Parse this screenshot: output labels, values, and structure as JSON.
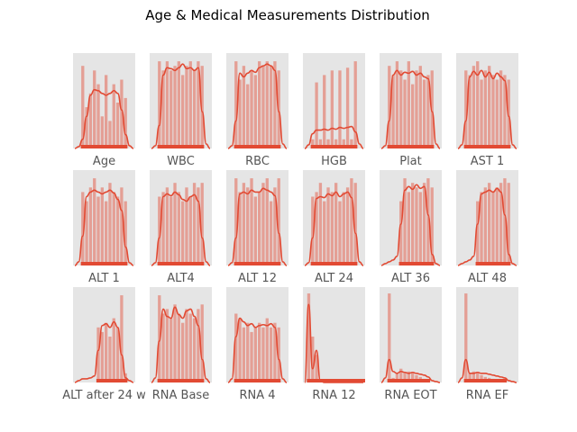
{
  "figure": {
    "title": "Age & Medical Measurements Distribution"
  },
  "colors": {
    "panel": "#e5e5e5",
    "bar": "#e24a33",
    "bar_alpha": 0.45,
    "kde": "#e24a33",
    "rug": "#e24a33"
  },
  "chart_data": [
    {
      "type": "area",
      "subplot": "histogram+kde",
      "xlabel": "Age",
      "kde": [
        0,
        0.02,
        0.1,
        0.35,
        0.58,
        0.64,
        0.63,
        0.6,
        0.58,
        0.6,
        0.63,
        0.6,
        0.42,
        0.15,
        0.03,
        0
      ],
      "bars": [
        0,
        0,
        0.9,
        0.45,
        0.6,
        0.85,
        0.7,
        0.35,
        0.8,
        0.3,
        0.7,
        0.5,
        0.75,
        0.55,
        0,
        0
      ]
    },
    {
      "type": "area",
      "subplot": "histogram+kde",
      "xlabel": "WBC",
      "kde": [
        0,
        0.03,
        0.25,
        0.8,
        0.88,
        0.87,
        0.85,
        0.88,
        0.92,
        0.87,
        0.88,
        0.85,
        0.88,
        0.4,
        0.05,
        0
      ],
      "bars": [
        0,
        0,
        0.95,
        0.85,
        0.95,
        0.85,
        0.9,
        0.95,
        0.8,
        0.9,
        0.95,
        0.85,
        0.95,
        0.9,
        0,
        0
      ]
    },
    {
      "type": "area",
      "subplot": "histogram+kde",
      "xlabel": "RBC",
      "kde": [
        0,
        0.03,
        0.3,
        0.82,
        0.78,
        0.82,
        0.85,
        0.83,
        0.88,
        0.9,
        0.92,
        0.9,
        0.85,
        0.4,
        0.05,
        0
      ],
      "bars": [
        0,
        0,
        0.95,
        0.75,
        0.9,
        0.7,
        0.85,
        0.8,
        0.95,
        0.9,
        0.95,
        0.9,
        0.95,
        0.85,
        0,
        0
      ]
    },
    {
      "type": "area",
      "subplot": "histogram+kde",
      "xlabel": "HGB",
      "kde": [
        0,
        0.04,
        0.16,
        0.2,
        0.2,
        0.21,
        0.2,
        0.22,
        0.21,
        0.23,
        0.22,
        0.23,
        0.24,
        0.18,
        0.05,
        0
      ],
      "bars": [
        0,
        0,
        0.1,
        0.72,
        0.1,
        0.8,
        0.1,
        0.85,
        0.1,
        0.85,
        0.1,
        0.88,
        0.1,
        0.95,
        0,
        0
      ]
    },
    {
      "type": "area",
      "subplot": "histogram+kde",
      "xlabel": "Plat",
      "kde": [
        0,
        0.03,
        0.3,
        0.8,
        0.85,
        0.8,
        0.83,
        0.82,
        0.84,
        0.8,
        0.82,
        0.78,
        0.76,
        0.4,
        0.05,
        0
      ],
      "bars": [
        0,
        0,
        0.9,
        0.8,
        0.95,
        0.85,
        0.75,
        0.95,
        0.7,
        0.85,
        0.9,
        0.75,
        0.8,
        0.85,
        0,
        0
      ]
    },
    {
      "type": "area",
      "subplot": "histogram+kde",
      "xlabel": "AST 1",
      "kde": [
        0,
        0.04,
        0.3,
        0.78,
        0.84,
        0.8,
        0.85,
        0.78,
        0.83,
        0.76,
        0.82,
        0.78,
        0.74,
        0.35,
        0.04,
        0
      ],
      "bars": [
        0,
        0,
        0.85,
        0.8,
        0.9,
        0.95,
        0.75,
        0.85,
        0.9,
        0.8,
        0.75,
        0.85,
        0.8,
        0.75,
        0,
        0
      ]
    },
    {
      "type": "area",
      "subplot": "histogram+kde",
      "xlabel": "ALT 1",
      "kde": [
        0,
        0.04,
        0.32,
        0.75,
        0.8,
        0.82,
        0.8,
        0.78,
        0.8,
        0.82,
        0.79,
        0.72,
        0.6,
        0.2,
        0.03,
        0
      ],
      "bars": [
        0,
        0,
        0.8,
        0.7,
        0.85,
        0.95,
        0.75,
        0.85,
        0.7,
        0.9,
        0.8,
        0.75,
        0.85,
        0.7,
        0,
        0
      ]
    },
    {
      "type": "area",
      "subplot": "histogram+kde",
      "xlabel": "ALT4",
      "kde": [
        0,
        0.03,
        0.3,
        0.75,
        0.78,
        0.76,
        0.8,
        0.77,
        0.72,
        0.7,
        0.75,
        0.77,
        0.7,
        0.3,
        0.04,
        0
      ],
      "bars": [
        0,
        0,
        0.75,
        0.8,
        0.85,
        0.75,
        0.9,
        0.8,
        0.7,
        0.85,
        0.75,
        0.9,
        0.85,
        0.9,
        0,
        0
      ]
    },
    {
      "type": "area",
      "subplot": "histogram+kde",
      "xlabel": "ALT 12",
      "kde": [
        0,
        0.03,
        0.3,
        0.78,
        0.8,
        0.78,
        0.82,
        0.8,
        0.8,
        0.84,
        0.82,
        0.8,
        0.76,
        0.35,
        0.04,
        0
      ],
      "bars": [
        0,
        0,
        0.95,
        0.8,
        0.9,
        0.85,
        0.95,
        0.75,
        0.8,
        0.9,
        0.95,
        0.7,
        0.85,
        0.95,
        0,
        0
      ]
    },
    {
      "type": "area",
      "subplot": "histogram+kde",
      "xlabel": "ALT 24",
      "kde": [
        0,
        0.03,
        0.3,
        0.73,
        0.75,
        0.74,
        0.78,
        0.76,
        0.8,
        0.75,
        0.78,
        0.8,
        0.74,
        0.35,
        0.04,
        0
      ],
      "bars": [
        0,
        0,
        0.75,
        0.8,
        0.9,
        0.7,
        0.85,
        0.8,
        0.9,
        0.7,
        0.8,
        0.85,
        0.95,
        0.9,
        0,
        0
      ]
    },
    {
      "type": "area",
      "subplot": "histogram+kde",
      "xlabel": "ALT 36",
      "kde": [
        0,
        0.02,
        0.04,
        0.06,
        0.1,
        0.45,
        0.82,
        0.86,
        0.83,
        0.88,
        0.84,
        0.86,
        0.55,
        0.12,
        0.02,
        0
      ],
      "bars": [
        0,
        0,
        0,
        0,
        0,
        0.7,
        0.95,
        0.8,
        0.9,
        0.85,
        0.8,
        0.9,
        0.95,
        0.85,
        0,
        0
      ]
    },
    {
      "type": "area",
      "subplot": "histogram+kde",
      "xlabel": "ALT 48",
      "kde": [
        0,
        0.02,
        0.04,
        0.06,
        0.1,
        0.45,
        0.78,
        0.8,
        0.82,
        0.8,
        0.84,
        0.8,
        0.55,
        0.12,
        0.02,
        0
      ],
      "bars": [
        0,
        0,
        0,
        0,
        0,
        0.7,
        0.8,
        0.85,
        0.9,
        0.8,
        0.85,
        0.9,
        0.95,
        0.9,
        0,
        0
      ]
    },
    {
      "type": "area",
      "subplot": "histogram+kde",
      "xlabel": "ALT after 24 w",
      "kde": [
        0,
        0.02,
        0.04,
        0.04,
        0.05,
        0.07,
        0.35,
        0.62,
        0.64,
        0.6,
        0.66,
        0.6,
        0.3,
        0.05,
        0.02,
        0
      ],
      "bars": [
        0,
        0,
        0,
        0,
        0,
        0,
        0.6,
        0.55,
        0.65,
        0.5,
        0.7,
        0.6,
        0.95,
        0.1,
        0,
        0
      ]
    },
    {
      "type": "area",
      "subplot": "histogram+kde",
      "xlabel": "RNA Base",
      "kde": [
        0,
        0.05,
        0.45,
        0.8,
        0.72,
        0.7,
        0.82,
        0.74,
        0.7,
        0.78,
        0.8,
        0.72,
        0.62,
        0.25,
        0.04,
        0
      ],
      "bars": [
        0,
        0,
        0.95,
        0.75,
        0.8,
        0.7,
        0.85,
        0.75,
        0.65,
        0.8,
        0.75,
        0.7,
        0.8,
        0.85,
        0,
        0
      ]
    },
    {
      "type": "area",
      "subplot": "histogram+kde",
      "xlabel": "RNA 4",
      "kde": [
        0,
        0.04,
        0.5,
        0.7,
        0.66,
        0.62,
        0.64,
        0.6,
        0.62,
        0.63,
        0.62,
        0.64,
        0.6,
        0.25,
        0.04,
        0
      ],
      "bars": [
        0,
        0,
        0.75,
        0.7,
        0.6,
        0.65,
        0.55,
        0.6,
        0.65,
        0.6,
        0.7,
        0.6,
        0.65,
        0.6,
        0,
        0
      ]
    },
    {
      "type": "area",
      "subplot": "histogram+kde",
      "xlabel": "RNA 12",
      "kde": [
        0,
        0.85,
        0.15,
        0.35,
        0.02,
        0,
        0,
        0,
        0,
        0,
        0,
        0,
        0,
        0,
        0,
        0
      ],
      "bars": [
        0,
        0.97,
        0.5,
        0.3,
        0,
        0,
        0,
        0,
        0,
        0,
        0,
        0,
        0,
        0,
        0,
        0.03
      ]
    },
    {
      "type": "area",
      "subplot": "histogram+kde",
      "xlabel": "RNA EOT",
      "kde": [
        0,
        0.05,
        0.25,
        0.12,
        0.1,
        0.12,
        0.11,
        0.1,
        0.11,
        0.1,
        0.09,
        0.08,
        0.06,
        0.02,
        0.01,
        0
      ],
      "bars": [
        0,
        0,
        0.97,
        0.05,
        0.1,
        0.15,
        0.1,
        0.12,
        0.1,
        0.08,
        0.06,
        0.04,
        0.02,
        0,
        0,
        0
      ]
    },
    {
      "type": "area",
      "subplot": "histogram+kde",
      "xlabel": "RNA EF",
      "kde": [
        0,
        0.05,
        0.25,
        0.1,
        0.1,
        0.11,
        0.1,
        0.1,
        0.09,
        0.08,
        0.07,
        0.06,
        0.05,
        0.02,
        0.01,
        0
      ],
      "bars": [
        0,
        0,
        0.97,
        0.1,
        0.12,
        0.1,
        0.08,
        0.06,
        0.05,
        0.04,
        0.03,
        0.02,
        0.01,
        0,
        0,
        0
      ]
    }
  ]
}
